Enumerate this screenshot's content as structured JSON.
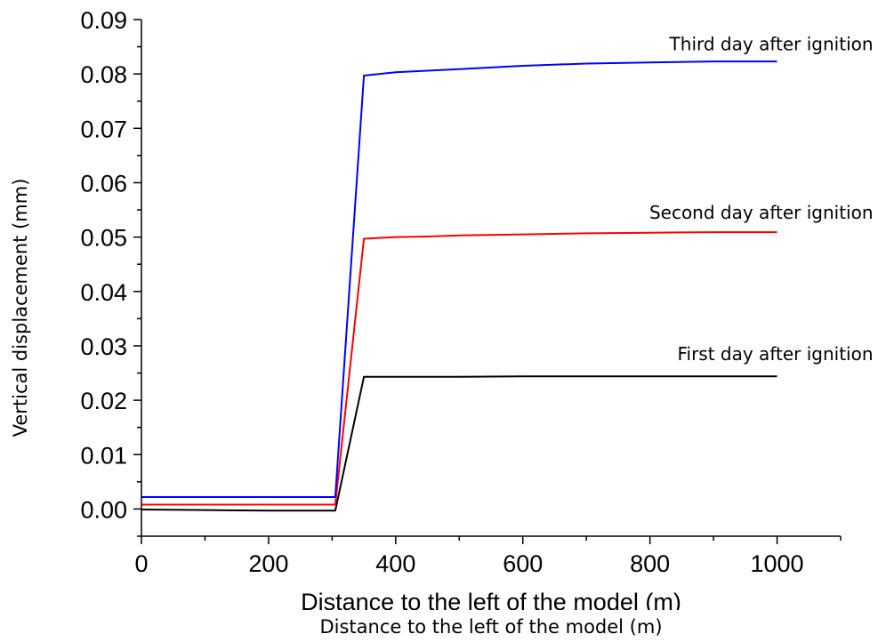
{
  "chart_data": {
    "type": "line",
    "xlabel": "Distance to the left of the model (m)",
    "ylabel": "Vertical displacement (mm)",
    "xlim": [
      0,
      1100
    ],
    "ylim": [
      -0.005,
      0.09
    ],
    "x_ticks": [
      0,
      200,
      400,
      600,
      800,
      1000
    ],
    "x_tick_labels": [
      "0",
      "200",
      "400",
      "600",
      "800",
      "1000"
    ],
    "y_ticks": [
      0.0,
      0.01,
      0.02,
      0.03,
      0.04,
      0.05,
      0.06,
      0.07,
      0.08,
      0.09
    ],
    "y_tick_labels": [
      "0.00",
      "0.01",
      "0.02",
      "0.03",
      "0.04",
      "0.05",
      "0.06",
      "0.07",
      "0.08",
      "0.09"
    ],
    "grid": false,
    "series": [
      {
        "name": "First day after ignition",
        "color": "#000000",
        "x": [
          0,
          100,
          200,
          305,
          350,
          400,
          500,
          600,
          700,
          800,
          900,
          1000
        ],
        "y": [
          -0.0001,
          -0.0002,
          -0.0003,
          -0.0003,
          0.0243,
          0.0243,
          0.0243,
          0.0244,
          0.0244,
          0.0244,
          0.0244,
          0.0244
        ]
      },
      {
        "name": "Second day after ignition",
        "color": "#ff0000",
        "x": [
          0,
          100,
          200,
          305,
          350,
          400,
          450,
          500,
          600,
          700,
          800,
          900,
          1000
        ],
        "y": [
          0.0008,
          0.0008,
          0.0008,
          0.0008,
          0.0497,
          0.05,
          0.0501,
          0.0503,
          0.0505,
          0.0507,
          0.0508,
          0.0509,
          0.0509
        ]
      },
      {
        "name": "Third day after ignition",
        "color": "#0000ff",
        "x": [
          0,
          100,
          200,
          305,
          350,
          400,
          450,
          500,
          600,
          700,
          800,
          900,
          1000
        ],
        "y": [
          0.0022,
          0.0022,
          0.0022,
          0.0022,
          0.0797,
          0.0803,
          0.0806,
          0.0809,
          0.0815,
          0.0819,
          0.0821,
          0.0823,
          0.0823
        ]
      }
    ],
    "annotations": [
      {
        "text": "Third day after ignition",
        "x": 1000,
        "y": 0.0855
      },
      {
        "text": "Second day after ignition",
        "x": 1000,
        "y": 0.0545
      },
      {
        "text": "First day after ignition",
        "x": 1000,
        "y": 0.0285
      }
    ],
    "ghost_xlabel": "Distance to the left of the model (m)"
  }
}
